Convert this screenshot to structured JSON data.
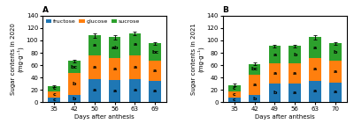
{
  "chart_data": [
    {
      "type": "bar",
      "stacked": true,
      "title": "A",
      "y_label": "Sugar contents in 2020\n(mg·g⁻¹)",
      "x_label": "Days after anthesis",
      "categories": [
        "35",
        "42",
        "50",
        "56",
        "63",
        "69"
      ],
      "series": [
        {
          "name": "fructose",
          "values": [
            8,
            12,
            38,
            36,
            38,
            35
          ],
          "annotations": [
            "c",
            "b",
            "a",
            "a",
            "a",
            "a"
          ]
        },
        {
          "name": "glucose",
          "values": [
            10,
            35,
            38,
            36,
            38,
            32
          ],
          "annotations": [
            "c",
            "b",
            "a",
            "a",
            "a",
            "a"
          ]
        },
        {
          "name": "sucrose",
          "values": [
            8,
            20,
            32,
            33,
            35,
            28
          ],
          "annotations": [
            "c",
            "bc",
            "a",
            "ab",
            "a",
            "bc"
          ]
        }
      ],
      "error_bars": [
        1.5,
        2.0,
        3.5,
        3.0,
        2.5,
        2.5
      ],
      "ylim": [
        0,
        140
      ],
      "yticks": [
        0,
        20,
        40,
        60,
        80,
        100,
        120,
        140
      ],
      "legend": "upper left"
    },
    {
      "type": "bar",
      "stacked": true,
      "title": "B",
      "y_label": "Sugar contents in 2021\n(mg·g⁻¹)",
      "x_label": "Days after anthesis",
      "categories": [
        "35",
        "42",
        "49",
        "56",
        "63",
        "70"
      ],
      "series": [
        {
          "name": "fructose",
          "values": [
            8,
            11,
            30,
            30,
            35,
            32
          ],
          "annotations": [
            "c",
            "b",
            "b",
            "a",
            "a",
            "a"
          ]
        },
        {
          "name": "glucose",
          "values": [
            10,
            33,
            33,
            33,
            37,
            35
          ],
          "annotations": [
            "c",
            "a",
            "a",
            "a",
            "a",
            "a"
          ]
        },
        {
          "name": "sucrose",
          "values": [
            10,
            18,
            28,
            28,
            33,
            28
          ],
          "annotations": [
            "c",
            "bc",
            "a",
            "b",
            "a",
            "b"
          ]
        }
      ],
      "error_bars": [
        1.5,
        2.0,
        2.5,
        2.5,
        3.5,
        2.5
      ],
      "ylim": [
        0,
        140
      ],
      "yticks": [
        0,
        20,
        40,
        60,
        80,
        100,
        120,
        140
      ]
    }
  ]
}
